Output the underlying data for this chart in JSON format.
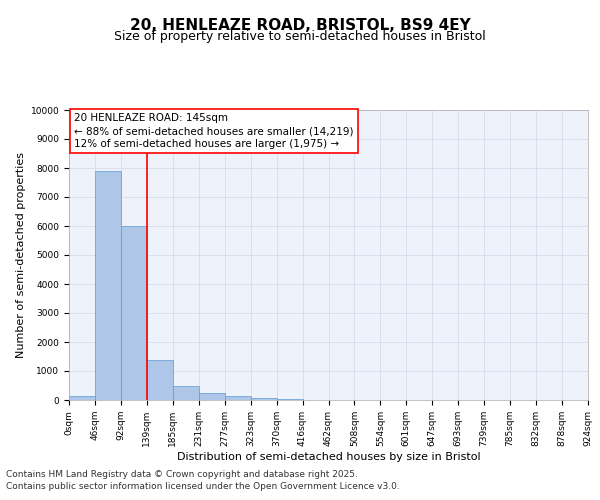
{
  "title_line1": "20, HENLEAZE ROAD, BRISTOL, BS9 4EY",
  "title_line2": "Size of property relative to semi-detached houses in Bristol",
  "xlabel": "Distribution of semi-detached houses by size in Bristol",
  "ylabel": "Number of semi-detached properties",
  "bar_values": [
    150,
    7900,
    6000,
    1380,
    490,
    230,
    140,
    60,
    20,
    5,
    2,
    1,
    0,
    0,
    0,
    0,
    0,
    0,
    0,
    0
  ],
  "bin_labels": [
    "0sqm",
    "46sqm",
    "92sqm",
    "139sqm",
    "185sqm",
    "231sqm",
    "277sqm",
    "323sqm",
    "370sqm",
    "416sqm",
    "462sqm",
    "508sqm",
    "554sqm",
    "601sqm",
    "647sqm",
    "693sqm",
    "739sqm",
    "785sqm",
    "832sqm",
    "878sqm",
    "924sqm"
  ],
  "bar_color": "#aec6e8",
  "bar_edge_color": "#5b9bd5",
  "grid_color": "#d0d8e8",
  "bg_color": "#eef2fa",
  "vline_x": 3,
  "vline_color": "red",
  "annotation_text": "20 HENLEAZE ROAD: 145sqm\n← 88% of semi-detached houses are smaller (14,219)\n12% of semi-detached houses are larger (1,975) →",
  "annotation_box_color": "white",
  "annotation_box_edge": "red",
  "ylim": [
    0,
    10000
  ],
  "yticks": [
    0,
    1000,
    2000,
    3000,
    4000,
    5000,
    6000,
    7000,
    8000,
    9000,
    10000
  ],
  "footer_line1": "Contains HM Land Registry data © Crown copyright and database right 2025.",
  "footer_line2": "Contains public sector information licensed under the Open Government Licence v3.0.",
  "title_fontsize": 11,
  "subtitle_fontsize": 9,
  "axis_label_fontsize": 8,
  "tick_fontsize": 6.5,
  "annotation_fontsize": 7.5,
  "footer_fontsize": 6.5
}
